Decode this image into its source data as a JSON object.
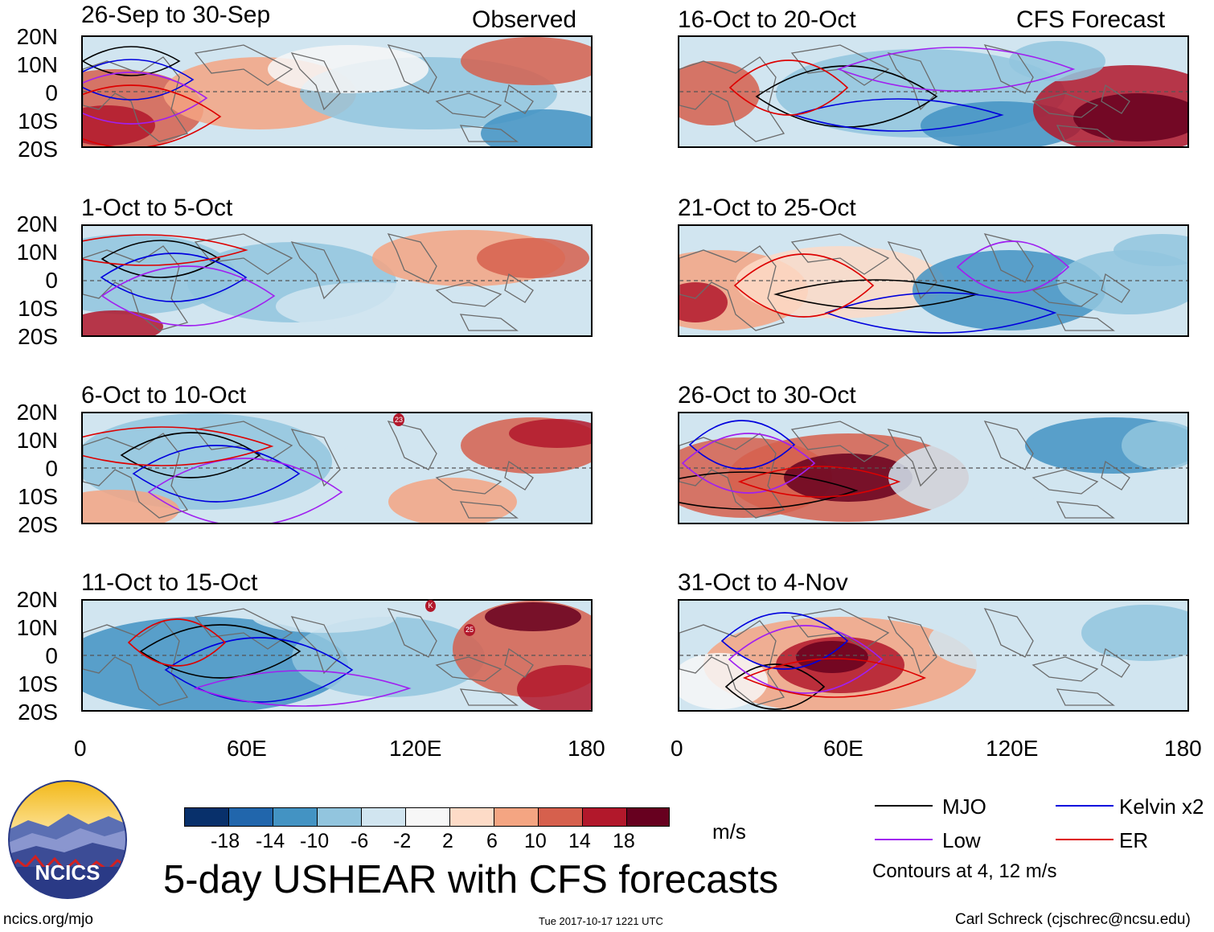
{
  "section_labels": {
    "observed": "Observed",
    "forecast": "CFS Forecast"
  },
  "panels": [
    {
      "title": "26-Sep to 30-Sep"
    },
    {
      "title": "1-Oct to 5-Oct"
    },
    {
      "title": "6-Oct to 10-Oct"
    },
    {
      "title": "11-Oct to 15-Oct"
    },
    {
      "title": "16-Oct to 20-Oct"
    },
    {
      "title": "21-Oct to 25-Oct"
    },
    {
      "title": "26-Oct to 30-Oct"
    },
    {
      "title": "31-Oct to 4-Nov"
    }
  ],
  "lat_labels": [
    "20N",
    "10N",
    "0",
    "10S",
    "20S"
  ],
  "lon_labels": [
    "0",
    "60E",
    "120E",
    "180"
  ],
  "colorbar": {
    "ticks": [
      "-18",
      "-14",
      "-10",
      "-6",
      "-2",
      "2",
      "6",
      "10",
      "14",
      "18"
    ],
    "colors": [
      "#08306b",
      "#2166ac",
      "#4393c3",
      "#92c5de",
      "#d1e5f0",
      "#f7f7f7",
      "#fddbc7",
      "#f4a582",
      "#d6604d",
      "#b2182b",
      "#67001f"
    ],
    "units": "m/s"
  },
  "legend": {
    "items": [
      {
        "label": "MJO",
        "color": "#000000"
      },
      {
        "label": "Kelvin x2",
        "color": "#0000dd"
      },
      {
        "label": "Low",
        "color": "#a020f0"
      },
      {
        "label": "ER",
        "color": "#dd0000"
      }
    ],
    "note": "Contours at 4, 12 m/s"
  },
  "main_title": "5-day USHEAR with CFS forecasts",
  "logo_text": "NCICS",
  "footer": {
    "url": "ncics.org/mjo",
    "timestamp": "Tue 2017-10-17 1221 UTC",
    "credit": "Carl Schreck (cjschrec@ncsu.edu)"
  },
  "storm_markers": [
    "23",
    "K",
    "25"
  ]
}
